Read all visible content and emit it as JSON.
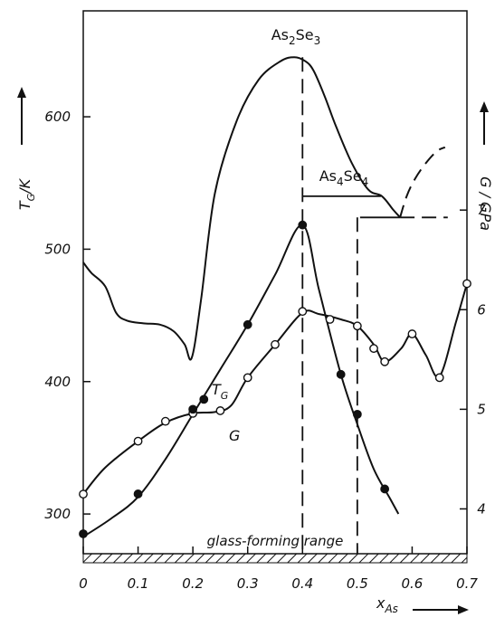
{
  "chart_data": {
    "type": "line",
    "axes": {
      "x": {
        "label": "x_As",
        "label_main": "x",
        "label_sub": "As",
        "range": [
          0,
          0.7
        ],
        "ticks": [
          "0",
          "0.1",
          "0.2",
          "0.3",
          "0.4",
          "0.5",
          "0.6",
          "0.7"
        ]
      },
      "y_left": {
        "label": "T_G / K",
        "label_main": "T",
        "label_sub": "G",
        "label_rest": "/K",
        "range": [
          270,
          680
        ],
        "ticks": [
          "300",
          "400",
          "500",
          "600"
        ]
      },
      "y_right": {
        "label": "G / GPa",
        "range": [
          3.55,
          9.0
        ],
        "ticks": [
          "4",
          "5",
          "6",
          "7"
        ]
      }
    },
    "liquidus": {
      "name": "liquidus",
      "x": [
        0.0,
        0.015,
        0.04,
        0.06,
        0.08,
        0.11,
        0.14,
        0.165,
        0.185,
        0.198,
        0.215,
        0.24,
        0.28,
        0.32,
        0.36,
        0.385,
        0.405,
        0.42,
        0.44,
        0.46,
        0.49,
        0.52,
        0.545,
        0.565,
        0.578
      ],
      "y": [
        490,
        482,
        472,
        452,
        446,
        444,
        443,
        438,
        428,
        418,
        462,
        542,
        597,
        628,
        642,
        645,
        642,
        635,
        616,
        594,
        565,
        545,
        540,
        530,
        524
      ]
    },
    "liquidus_dashed": {
      "x": [
        0.578,
        0.59,
        0.605,
        0.625,
        0.645,
        0.66
      ],
      "y": [
        524,
        540,
        553,
        565,
        574,
        577
      ]
    },
    "compound_lines": {
      "As2Se3": {
        "label_main": "As",
        "label_sub1": "2",
        "label_mid": "Se",
        "label_sub2": "3",
        "x": 0.4
      },
      "As4Se4": {
        "label_main": "As",
        "label_sub1": "4",
        "label_mid": "Se",
        "label_sub2": "4",
        "x": 0.5,
        "y_top": 540
      }
    },
    "tie_lines": [
      {
        "x": [
          0.4,
          0.543
        ],
        "y": [
          540,
          540
        ],
        "style": "solid"
      },
      {
        "x": [
          0.505,
          0.578
        ],
        "y": [
          524,
          524
        ],
        "style": "solid"
      },
      {
        "x": [
          0.578,
          0.665
        ],
        "y": [
          524,
          524
        ],
        "style": "dashed"
      }
    ],
    "series": [
      {
        "name": "T_G",
        "label_main": "T",
        "label_sub": "G",
        "axis": "left",
        "marker": "open-circle",
        "points": {
          "x": [
            0.0,
            0.1,
            0.15,
            0.2,
            0.25,
            0.3,
            0.35,
            0.4,
            0.45,
            0.5,
            0.53,
            0.55,
            0.6,
            0.65,
            0.7
          ],
          "y": [
            315,
            355,
            370,
            376,
            378,
            403,
            428,
            453,
            447,
            442,
            425,
            415,
            436,
            403,
            474
          ]
        },
        "curve": {
          "x": [
            0.0,
            0.04,
            0.1,
            0.15,
            0.2,
            0.24,
            0.27,
            0.3,
            0.35,
            0.4,
            0.43,
            0.47,
            0.5,
            0.53,
            0.55,
            0.58,
            0.6,
            0.625,
            0.65,
            0.68,
            0.7
          ],
          "y": [
            315,
            335,
            355,
            369,
            376,
            377,
            382,
            403,
            428,
            452,
            451,
            447,
            442,
            428,
            415,
            425,
            436,
            420,
            404,
            445,
            474
          ]
        }
      },
      {
        "name": "G",
        "label_main": "G",
        "axis": "right",
        "marker": "filled-circle",
        "points": {
          "x": [
            0.0,
            0.1,
            0.2,
            0.22,
            0.3,
            0.4,
            0.47,
            0.5,
            0.55
          ],
          "y": [
            3.75,
            4.15,
            5.0,
            5.1,
            5.85,
            6.85,
            5.35,
            4.95,
            4.2
          ]
        },
        "curve": {
          "x": [
            0.0,
            0.05,
            0.1,
            0.15,
            0.2,
            0.25,
            0.3,
            0.35,
            0.4,
            0.43,
            0.47,
            0.5,
            0.53,
            0.56,
            0.575
          ],
          "y": [
            3.72,
            3.9,
            4.12,
            4.5,
            4.95,
            5.4,
            5.85,
            6.35,
            6.85,
            6.2,
            5.35,
            4.85,
            4.4,
            4.1,
            3.95
          ]
        }
      }
    ],
    "annotations": {
      "glass_forming": "glass-forming range",
      "glass_forming_x": [
        0.0,
        0.7
      ]
    },
    "grid": false,
    "legend": "none"
  }
}
